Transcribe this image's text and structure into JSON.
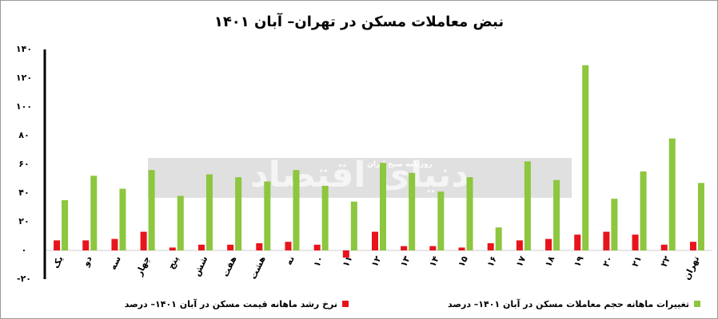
{
  "chart_data": {
    "type": "bar",
    "title": "نبض معاملات مسکن در تهران– آبان ۱۴۰۱",
    "watermark": "دنیای اقتصاد",
    "watermark_sub": "روزنامه صبح ایران",
    "categories": [
      "یک",
      "دو",
      "سه",
      "چهار",
      "پنج",
      "شش",
      "هفت",
      "هشت",
      "نه",
      "۱۰",
      "۱۱",
      "۱۲",
      "۱۳",
      "۱۴",
      "۱۵",
      "۱۶",
      "۱۷",
      "۱۸",
      "۱۹",
      "۲۰",
      "۲۱",
      "۲۲",
      "تهران"
    ],
    "series": [
      {
        "name": "نرخ رشد ماهانه قیمت مسکن در آبان ۱۴۰۱– درصد",
        "color": "#e8141b",
        "values": [
          7,
          7,
          8,
          13,
          2,
          4,
          4,
          5,
          6,
          4,
          -5,
          13,
          3,
          3,
          2,
          5,
          7,
          8,
          11,
          13,
          11,
          4,
          6
        ]
      },
      {
        "name": "تغییرات ماهانه حجم معاملات مسکن در آبان ۱۴۰۱– درصد",
        "color": "#8dc63f",
        "values": [
          35,
          52,
          43,
          56,
          38,
          53,
          51,
          48,
          56,
          45,
          34,
          61,
          54,
          41,
          51,
          16,
          62,
          49,
          129,
          36,
          55,
          78,
          47
        ]
      }
    ],
    "ylim": [
      -20,
      140
    ],
    "yticks": [
      {
        "value": -20,
        "label": "-۲۰"
      },
      {
        "value": 0,
        "label": "۰"
      },
      {
        "value": 20,
        "label": "۲۰"
      },
      {
        "value": 40,
        "label": "۴۰"
      },
      {
        "value": 60,
        "label": "۶۰"
      },
      {
        "value": 80,
        "label": "۸۰"
      },
      {
        "value": 100,
        "label": "۱۰۰"
      },
      {
        "value": 120,
        "label": "۱۲۰"
      },
      {
        "value": 140,
        "label": "۱۴۰"
      }
    ],
    "grid": false
  }
}
